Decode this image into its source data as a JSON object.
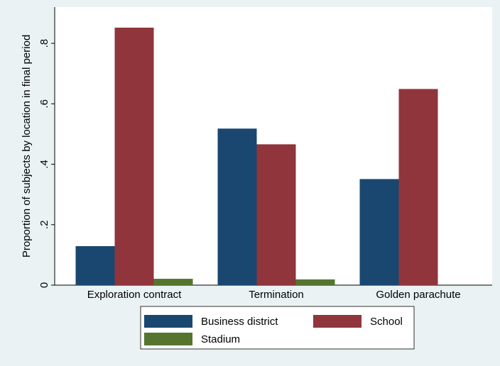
{
  "chart_data": {
    "type": "bar",
    "y_label": "Proportion of subjects by location in final period",
    "categories": [
      "Exploration contract",
      "Termination",
      "Golden parachute"
    ],
    "series": [
      {
        "name": "Business district",
        "color": "#1a476f",
        "values": [
          0.129,
          0.518,
          0.351
        ]
      },
      {
        "name": "School",
        "color": "#90353b",
        "values": [
          0.852,
          0.466,
          0.649
        ]
      },
      {
        "name": "Stadium",
        "color": "#55752f",
        "values": [
          0.021,
          0.019,
          0
        ]
      }
    ],
    "ylim": [
      0,
      0.92
    ],
    "yticks": [
      0,
      {
        "value": 0.2,
        "label": ".2"
      },
      {
        "value": 0.4,
        "label": ".4"
      },
      {
        "value": 0.6,
        "label": ".6"
      },
      {
        "value": 0.8,
        "label": ".8"
      }
    ],
    "legend": "bottom"
  }
}
